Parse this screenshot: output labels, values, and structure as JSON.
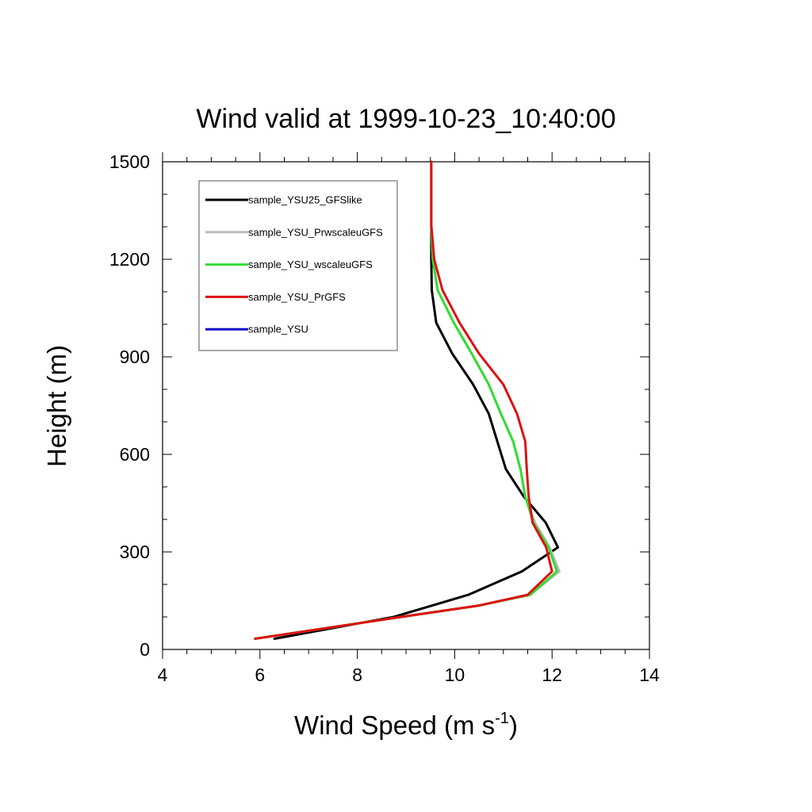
{
  "chart_data": {
    "type": "line",
    "title": "Wind valid at 1999-10-23_10:40:00",
    "xlabel_main": "Wind Speed (m s",
    "xlabel_sup": "-1",
    "xlabel_close": ")",
    "ylabel": "Height (m)",
    "xlim": [
      4,
      14
    ],
    "ylim": [
      0,
      1500
    ],
    "xticks": [
      4,
      6,
      8,
      10,
      12,
      14
    ],
    "yticks": [
      0,
      300,
      600,
      900,
      1200,
      1500
    ],
    "xtick_labels": [
      "4",
      "6",
      "8",
      "10",
      "12",
      "14"
    ],
    "ytick_labels": [
      "0",
      "300",
      "600",
      "900",
      "1200",
      "1500"
    ],
    "legend_position": "top-left",
    "series": [
      {
        "name": "sample_YSU25_GFSlike",
        "color": "#000000",
        "points": [
          [
            6.3,
            33
          ],
          [
            8.75,
            100
          ],
          [
            10.28,
            168
          ],
          [
            11.38,
            240
          ],
          [
            12.12,
            314
          ],
          [
            11.87,
            390
          ],
          [
            11.42,
            470
          ],
          [
            11.05,
            555
          ],
          [
            10.7,
            725
          ],
          [
            10.38,
            815
          ],
          [
            9.95,
            910
          ],
          [
            9.62,
            1005
          ],
          [
            9.53,
            1105
          ],
          [
            9.52,
            1200
          ],
          [
            9.52,
            1305
          ],
          [
            9.52,
            1500
          ]
        ]
      },
      {
        "name": "sample_YSU_PrwscaleuGFS",
        "color": "#bbbbbb",
        "points": [
          [
            5.9,
            33
          ],
          [
            8.9,
            100
          ],
          [
            10.5,
            135
          ],
          [
            11.55,
            168
          ],
          [
            12.15,
            240
          ],
          [
            11.95,
            314
          ],
          [
            11.65,
            390
          ],
          [
            11.45,
            470
          ],
          [
            11.35,
            555
          ],
          [
            11.2,
            640
          ],
          [
            10.95,
            725
          ],
          [
            10.7,
            815
          ],
          [
            10.35,
            910
          ],
          [
            9.98,
            1005
          ],
          [
            9.65,
            1105
          ],
          [
            9.55,
            1200
          ],
          [
            9.52,
            1305
          ],
          [
            9.52,
            1500
          ]
        ]
      },
      {
        "name": "sample_YSU_wscaleuGFS",
        "color": "#33dd33",
        "points": [
          [
            5.9,
            33
          ],
          [
            8.9,
            100
          ],
          [
            10.5,
            135
          ],
          [
            11.55,
            168
          ],
          [
            12.1,
            240
          ],
          [
            11.93,
            314
          ],
          [
            11.62,
            390
          ],
          [
            11.45,
            470
          ],
          [
            11.35,
            555
          ],
          [
            11.2,
            640
          ],
          [
            10.95,
            725
          ],
          [
            10.7,
            815
          ],
          [
            10.35,
            910
          ],
          [
            9.98,
            1005
          ],
          [
            9.65,
            1105
          ],
          [
            9.55,
            1200
          ],
          [
            9.52,
            1305
          ],
          [
            9.52,
            1500
          ]
        ]
      },
      {
        "name": "sample_YSU_PrGFS",
        "color": "#dd1111",
        "points": [
          [
            5.9,
            33
          ],
          [
            8.9,
            100
          ],
          [
            10.5,
            135
          ],
          [
            11.5,
            168
          ],
          [
            12.0,
            240
          ],
          [
            11.88,
            314
          ],
          [
            11.6,
            390
          ],
          [
            11.52,
            470
          ],
          [
            11.48,
            555
          ],
          [
            11.45,
            640
          ],
          [
            11.28,
            725
          ],
          [
            11.0,
            815
          ],
          [
            10.5,
            910
          ],
          [
            10.1,
            1005
          ],
          [
            9.75,
            1105
          ],
          [
            9.58,
            1200
          ],
          [
            9.52,
            1305
          ],
          [
            9.52,
            1500
          ]
        ]
      },
      {
        "name": "sample_YSU",
        "color": "#1111cc",
        "points": []
      }
    ]
  }
}
